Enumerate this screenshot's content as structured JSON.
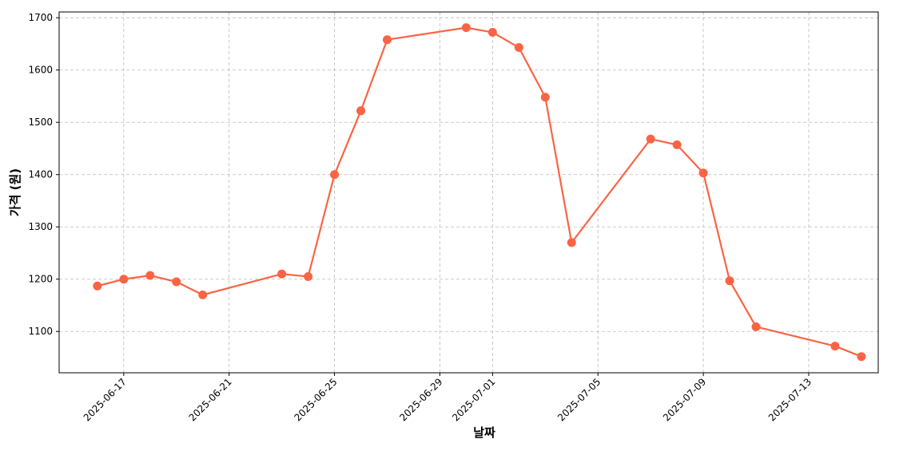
{
  "chart_data": {
    "type": "line",
    "x": [
      "2025-06-16",
      "2025-06-17",
      "2025-06-18",
      "2025-06-19",
      "2025-06-20",
      "2025-06-23",
      "2025-06-24",
      "2025-06-25",
      "2025-06-26",
      "2025-06-27",
      "2025-06-30",
      "2025-07-01",
      "2025-07-02",
      "2025-07-03",
      "2025-07-04",
      "2025-07-07",
      "2025-07-08",
      "2025-07-09",
      "2025-07-10",
      "2025-07-11",
      "2025-07-14",
      "2025-07-15"
    ],
    "values": [
      1187,
      1200,
      1207,
      1195,
      1170,
      1210,
      1205,
      1400,
      1522,
      1658,
      1681,
      1672,
      1643,
      1548,
      1270,
      1468,
      1457,
      1403,
      1197,
      1109,
      1072,
      1052
    ],
    "color": "#fa6444",
    "xlabel": "날짜",
    "ylabel": "가격 (원)",
    "xlim": [
      "2025-06-14T13:10",
      "2025-07-15T15:20"
    ],
    "xticks": [
      "2025-06-17",
      "2025-06-21",
      "2025-06-25",
      "2025-06-29",
      "2025-07-01",
      "2025-07-05",
      "2025-07-09",
      "2025-07-13"
    ],
    "ylim": [
      1021,
      1711
    ],
    "yticks": [
      1100,
      1200,
      1300,
      1400,
      1500,
      1600,
      1700
    ],
    "grid": true
  }
}
